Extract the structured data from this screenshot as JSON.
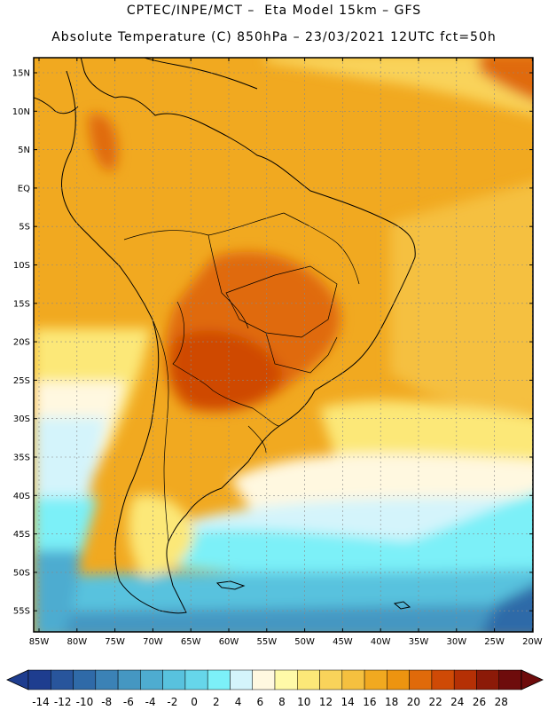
{
  "header": {
    "line1": "CPTEC/INPE/MCT –  Eta Model 15km – GFS",
    "line2": "Absolute Temperature (C) 850hPa – 23/03/2021 12UTC fct=50h"
  },
  "axes": {
    "lat_labels": [
      "15N",
      "10N",
      "5N",
      "EQ",
      "5S",
      "10S",
      "15S",
      "20S",
      "25S",
      "30S",
      "35S",
      "40S",
      "45S",
      "50S",
      "55S"
    ],
    "lon_labels": [
      "85W",
      "80W",
      "75W",
      "70W",
      "65W",
      "60W",
      "55W",
      "50W",
      "45W",
      "40W",
      "35W",
      "30W",
      "25W",
      "20W"
    ]
  },
  "map_extent": {
    "lon_min": -86,
    "lon_max": -20,
    "lat_min": -58,
    "lat_max": 16
  },
  "colorbar": {
    "labels": [
      "-14",
      "-12",
      "-10",
      "-8",
      "-6",
      "-4",
      "-2",
      "0",
      "2",
      "4",
      "6",
      "8",
      "10",
      "12",
      "14",
      "16",
      "18",
      "20",
      "22",
      "24",
      "26",
      "28"
    ],
    "colors": [
      "#1e3d8f",
      "#28559c",
      "#2f6aa8",
      "#3b82b6",
      "#4597c2",
      "#4eacd0",
      "#58c2de",
      "#66d6ea",
      "#7cf0f8",
      "#d4f4fb",
      "#fff8e0",
      "#fffaa8",
      "#fce878",
      "#f9d35a",
      "#f5c03f",
      "#f1a920",
      "#ed9410",
      "#e06a0a",
      "#cf4a06",
      "#b53005",
      "#8c1a08",
      "#6e0c0c"
    ]
  },
  "map_style": {
    "background_color": "#f5b327",
    "coast_color": "#000000",
    "grid_color": "#888888"
  }
}
